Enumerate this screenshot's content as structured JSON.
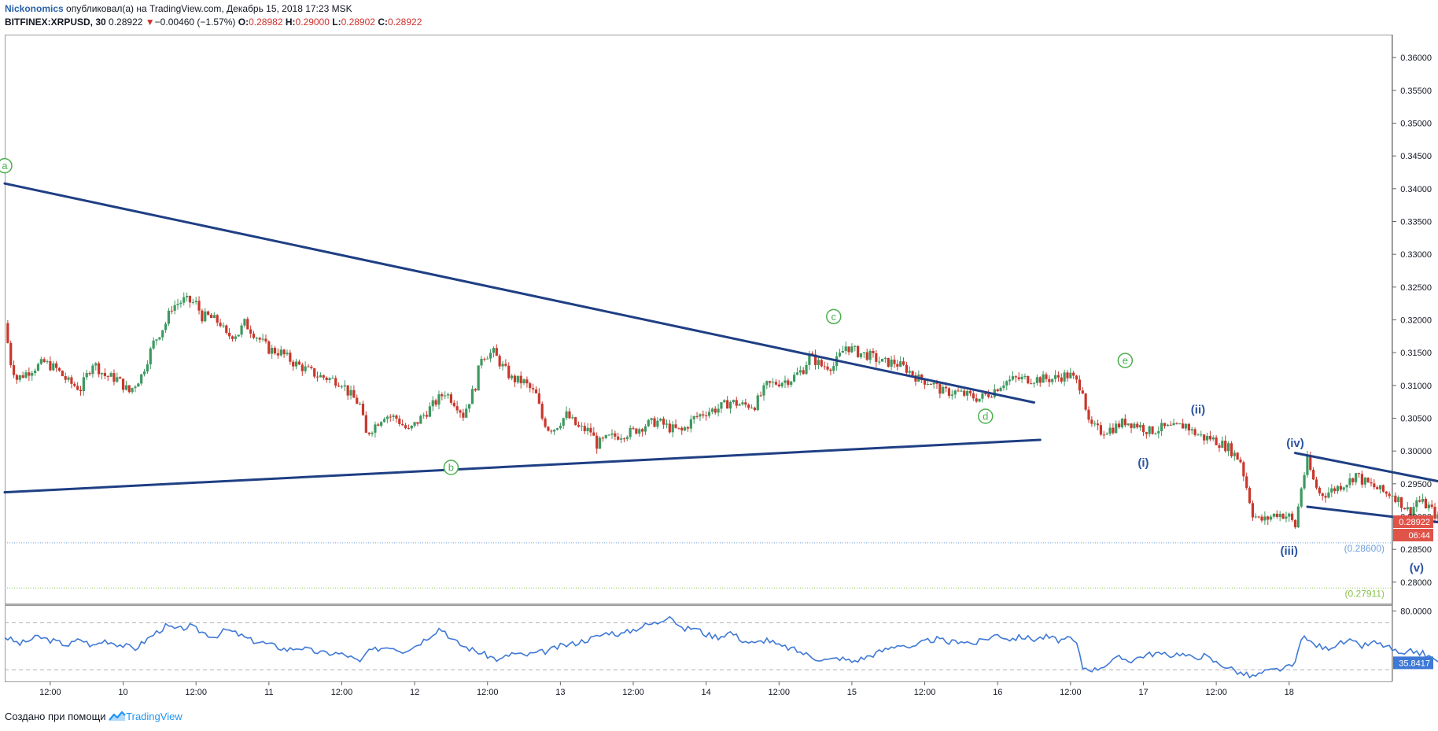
{
  "header": {
    "author": "Nickonomics",
    "published_text": "опубликовал(а) на TradingView.com, Декабрь 15, 2018 17:23 MSK",
    "symbol": "BITFINEX:XRPUSD, 30",
    "last": "0.28922",
    "change_arrow": "▼",
    "change": "−0.00460 (−1.57%)",
    "o_label": "O:",
    "o_value": "0.28982",
    "h_label": "H:",
    "h_value": "0.29000",
    "l_label": "L:",
    "l_value": "0.28902",
    "c_label": "C:",
    "c_value": "0.28922"
  },
  "footer": {
    "made_with": "Создано при помощи",
    "brand": "TradingView"
  },
  "colors": {
    "up": "#3d9960",
    "down": "#c9372c",
    "trendline": "#1f3f84",
    "wave_green": "#4caf50",
    "wave_blue": "#2a53a2",
    "rsi": "#3f79d6",
    "badge": "#e05349"
  },
  "chart_data": {
    "type": "candlestick",
    "symbol": "BITFINEX:XRPUSD",
    "interval": "30",
    "price_axis": {
      "ylim": [
        0.2765,
        0.3635
      ],
      "ticks": [
        "0.36000",
        "0.35500",
        "0.35000",
        "0.34500",
        "0.34000",
        "0.33500",
        "0.33000",
        "0.32500",
        "0.32000",
        "0.31500",
        "0.31000",
        "0.30500",
        "0.30000",
        "0.29500",
        "0.29000",
        "0.28500",
        "0.28000"
      ]
    },
    "time_axis": {
      "ticks": [
        "12:00",
        "10",
        "12:00",
        "11",
        "12:00",
        "12",
        "12:00",
        "13",
        "12:00",
        "14",
        "12:00",
        "15",
        "12:00",
        "16",
        "12:00",
        "17",
        "12:00",
        "18"
      ],
      "range_hours": [
        -7.5,
        221
      ]
    },
    "last_price_badge": "0.28922",
    "countdown_badge": "06:44",
    "levels": [
      {
        "label": "(0.28600)",
        "value": 0.286,
        "color": "#6d9fe0"
      },
      {
        "label": "(0.27911)",
        "value": 0.27911,
        "color": "#8bc34a"
      }
    ],
    "close_path": [
      [
        -7.5,
        0.3195
      ],
      [
        -6.5,
        0.3135
      ],
      [
        -5.5,
        0.311
      ],
      [
        -3,
        0.3125
      ],
      [
        -1,
        0.3135
      ],
      [
        1,
        0.3125
      ],
      [
        3,
        0.3105
      ],
      [
        5,
        0.3095
      ],
      [
        7,
        0.3135
      ],
      [
        9,
        0.3115
      ],
      [
        11,
        0.311
      ],
      [
        13,
        0.309
      ],
      [
        15,
        0.3115
      ],
      [
        17,
        0.3165
      ],
      [
        19,
        0.3195
      ],
      [
        20,
        0.322
      ],
      [
        22,
        0.323
      ],
      [
        24,
        0.3225
      ],
      [
        25,
        0.3205
      ],
      [
        26,
        0.3205
      ],
      [
        28,
        0.3195
      ],
      [
        29,
        0.3175
      ],
      [
        31,
        0.318
      ],
      [
        32,
        0.3195
      ],
      [
        34,
        0.3175
      ],
      [
        35,
        0.3165
      ],
      [
        36,
        0.3155
      ],
      [
        38,
        0.315
      ],
      [
        40,
        0.3135
      ],
      [
        42,
        0.3125
      ],
      [
        44,
        0.3115
      ],
      [
        46,
        0.311
      ],
      [
        48,
        0.3105
      ],
      [
        49,
        0.309
      ],
      [
        51,
        0.307
      ],
      [
        52,
        0.3025
      ],
      [
        54,
        0.3045
      ],
      [
        55,
        0.3055
      ],
      [
        57,
        0.305
      ],
      [
        59,
        0.303
      ],
      [
        61,
        0.305
      ],
      [
        63,
        0.307
      ],
      [
        65,
        0.309
      ],
      [
        67,
        0.307
      ],
      [
        68,
        0.3055
      ],
      [
        70,
        0.31
      ],
      [
        71,
        0.3145
      ],
      [
        73,
        0.315
      ],
      [
        74,
        0.3135
      ],
      [
        76,
        0.311
      ],
      [
        78,
        0.3105
      ],
      [
        80,
        0.3085
      ],
      [
        81,
        0.305
      ],
      [
        82,
        0.3035
      ],
      [
        83,
        0.3035
      ],
      [
        85,
        0.3055
      ],
      [
        87,
        0.3035
      ],
      [
        89,
        0.303
      ],
      [
        90,
        0.301
      ],
      [
        92,
        0.302
      ],
      [
        94,
        0.3025
      ],
      [
        96,
        0.303
      ],
      [
        98,
        0.304
      ],
      [
        100,
        0.3045
      ],
      [
        102,
        0.3035
      ],
      [
        104,
        0.303
      ],
      [
        106,
        0.305
      ],
      [
        108,
        0.306
      ],
      [
        110,
        0.3065
      ],
      [
        112,
        0.3075
      ],
      [
        114,
        0.307
      ],
      [
        116,
        0.307
      ],
      [
        118,
        0.31
      ],
      [
        120,
        0.3105
      ],
      [
        122,
        0.311
      ],
      [
        124,
        0.3125
      ],
      [
        125,
        0.3145
      ],
      [
        127,
        0.313
      ],
      [
        129,
        0.313
      ],
      [
        131,
        0.316
      ],
      [
        132,
        0.3155
      ],
      [
        133,
        0.315
      ],
      [
        135,
        0.3145
      ],
      [
        137,
        0.3135
      ],
      [
        139,
        0.3135
      ],
      [
        141,
        0.3125
      ],
      [
        143,
        0.311
      ],
      [
        145,
        0.3105
      ],
      [
        147,
        0.309
      ],
      [
        149,
        0.309
      ],
      [
        151,
        0.3085
      ],
      [
        153,
        0.308
      ],
      [
        155,
        0.309
      ],
      [
        157,
        0.3105
      ],
      [
        159,
        0.311
      ],
      [
        161,
        0.311
      ],
      [
        163,
        0.311
      ],
      [
        165,
        0.311
      ],
      [
        167,
        0.3115
      ],
      [
        168,
        0.3115
      ],
      [
        170,
        0.3095
      ],
      [
        171,
        0.304
      ],
      [
        173,
        0.303
      ],
      [
        175,
        0.3035
      ],
      [
        177,
        0.3045
      ],
      [
        179,
        0.304
      ],
      [
        181,
        0.303
      ],
      [
        183,
        0.3035
      ],
      [
        185,
        0.3035
      ],
      [
        187,
        0.304
      ],
      [
        188,
        0.303
      ],
      [
        189,
        0.3025
      ],
      [
        190,
        0.302
      ],
      [
        191,
        0.302
      ],
      [
        193,
        0.301
      ],
      [
        194,
        0.3005
      ],
      [
        195,
        0.2995
      ],
      [
        196,
        0.2985
      ],
      [
        197,
        0.2945
      ],
      [
        198,
        0.2905
      ],
      [
        199,
        0.2895
      ],
      [
        200,
        0.2895
      ],
      [
        202,
        0.2905
      ],
      [
        204,
        0.29
      ],
      [
        205,
        0.2885
      ],
      [
        206,
        0.2945
      ],
      [
        207,
        0.2985
      ],
      [
        208,
        0.2955
      ],
      [
        209,
        0.2935
      ],
      [
        210,
        0.2935
      ],
      [
        212,
        0.2945
      ],
      [
        214,
        0.2955
      ],
      [
        215,
        0.2965
      ],
      [
        216,
        0.2955
      ],
      [
        218,
        0.2945
      ],
      [
        220,
        0.2935
      ],
      [
        221,
        0.2935
      ],
      [
        223,
        0.2915
      ],
      [
        224,
        0.2905
      ],
      [
        225,
        0.2925
      ],
      [
        227,
        0.2915
      ],
      [
        228,
        0.2903
      ],
      [
        229,
        0.2892
      ]
    ],
    "trendlines": [
      {
        "name": "upper-triangle",
        "points": [
          [
            -7.5,
            0.3408
          ],
          [
            162,
            0.3074
          ]
        ]
      },
      {
        "name": "lower-triangle",
        "points": [
          [
            -7.5,
            0.2937
          ],
          [
            163,
            0.3017
          ]
        ]
      },
      {
        "name": "wedge-upper",
        "points": [
          [
            205,
            0.2997
          ],
          [
            241,
            0.2931
          ]
        ]
      },
      {
        "name": "wedge-lower",
        "points": [
          [
            207,
            0.2915
          ],
          [
            240,
            0.2879
          ]
        ]
      }
    ],
    "wave_labels": [
      {
        "text": "a",
        "t": -7.5,
        "price": 0.3435,
        "style": "circled-green"
      },
      {
        "text": "b",
        "t": 66,
        "price": 0.2975,
        "style": "circled-green"
      },
      {
        "text": "c",
        "t": 129,
        "price": 0.3205,
        "style": "circled-green"
      },
      {
        "text": "d",
        "t": 154,
        "price": 0.3053,
        "style": "circled-green"
      },
      {
        "text": "e",
        "t": 177,
        "price": 0.3138,
        "style": "circled-green"
      },
      {
        "text": "(i)",
        "t": 180,
        "price": 0.2982,
        "style": "blue"
      },
      {
        "text": "(ii)",
        "t": 189,
        "price": 0.3063,
        "style": "blue"
      },
      {
        "text": "(iii)",
        "t": 204,
        "price": 0.2848,
        "style": "blue"
      },
      {
        "text": "(iv)",
        "t": 205,
        "price": 0.3012,
        "style": "blue"
      },
      {
        "text": "(v)",
        "t": 225,
        "price": 0.2822,
        "style": "blue"
      }
    ],
    "rsi": {
      "ylim": [
        20,
        85
      ],
      "ticks": [
        "80.0000"
      ],
      "bands": [
        70,
        30
      ],
      "last_value_badge": "35.8417",
      "path": [
        [
          -7.5,
          58
        ],
        [
          -5,
          52
        ],
        [
          -2,
          58
        ],
        [
          0,
          55
        ],
        [
          3,
          51
        ],
        [
          5,
          56
        ],
        [
          7,
          50
        ],
        [
          9,
          55
        ],
        [
          11,
          52
        ],
        [
          14,
          48
        ],
        [
          17,
          60
        ],
        [
          19,
          67
        ],
        [
          21,
          64
        ],
        [
          23,
          67
        ],
        [
          25,
          62
        ],
        [
          27,
          58
        ],
        [
          29,
          64
        ],
        [
          31,
          60
        ],
        [
          33,
          55
        ],
        [
          35,
          53
        ],
        [
          37,
          50
        ],
        [
          39,
          47
        ],
        [
          41,
          49
        ],
        [
          43,
          46
        ],
        [
          45,
          44
        ],
        [
          47,
          44
        ],
        [
          49,
          42
        ],
        [
          51,
          36
        ],
        [
          52,
          44
        ],
        [
          54,
          48
        ],
        [
          56,
          50
        ],
        [
          58,
          46
        ],
        [
          60,
          50
        ],
        [
          62,
          57
        ],
        [
          64,
          65
        ],
        [
          65,
          63
        ],
        [
          66,
          56
        ],
        [
          68,
          50
        ],
        [
          70,
          46
        ],
        [
          72,
          42
        ],
        [
          74,
          38
        ],
        [
          76,
          44
        ],
        [
          78,
          42
        ],
        [
          80,
          44
        ],
        [
          82,
          46
        ],
        [
          84,
          50
        ],
        [
          86,
          52
        ],
        [
          88,
          55
        ],
        [
          90,
          58
        ],
        [
          92,
          62
        ],
        [
          94,
          60
        ],
        [
          96,
          64
        ],
        [
          98,
          68
        ],
        [
          100,
          70
        ],
        [
          102,
          77
        ],
        [
          104,
          64
        ],
        [
          106,
          66
        ],
        [
          108,
          60
        ],
        [
          110,
          58
        ],
        [
          112,
          62
        ],
        [
          114,
          55
        ],
        [
          116,
          52
        ],
        [
          118,
          56
        ],
        [
          120,
          50
        ],
        [
          122,
          48
        ],
        [
          124,
          44
        ],
        [
          126,
          40
        ],
        [
          128,
          38
        ],
        [
          130,
          40
        ],
        [
          132,
          37
        ],
        [
          134,
          40
        ],
        [
          136,
          44
        ],
        [
          138,
          48
        ],
        [
          140,
          52
        ],
        [
          142,
          48
        ],
        [
          144,
          54
        ],
        [
          146,
          56
        ],
        [
          148,
          53
        ],
        [
          150,
          55
        ],
        [
          152,
          52
        ],
        [
          154,
          56
        ],
        [
          156,
          60
        ],
        [
          158,
          56
        ],
        [
          160,
          58
        ],
        [
          162,
          56
        ],
        [
          164,
          58
        ],
        [
          166,
          55
        ],
        [
          168,
          56
        ],
        [
          169,
          52
        ],
        [
          170,
          32
        ],
        [
          172,
          30
        ],
        [
          174,
          35
        ],
        [
          176,
          40
        ],
        [
          178,
          38
        ],
        [
          180,
          42
        ],
        [
          182,
          44
        ],
        [
          184,
          42
        ],
        [
          186,
          44
        ],
        [
          188,
          40
        ],
        [
          190,
          42
        ],
        [
          192,
          36
        ],
        [
          194,
          32
        ],
        [
          196,
          27
        ],
        [
          198,
          24
        ],
        [
          200,
          28
        ],
        [
          202,
          30
        ],
        [
          204,
          32
        ],
        [
          205,
          35
        ],
        [
          206,
          58
        ],
        [
          208,
          52
        ],
        [
          210,
          48
        ],
        [
          212,
          52
        ],
        [
          214,
          54
        ],
        [
          216,
          50
        ],
        [
          218,
          53
        ],
        [
          220,
          50
        ],
        [
          222,
          44
        ],
        [
          223,
          41
        ],
        [
          224,
          46
        ],
        [
          226,
          44
        ],
        [
          228,
          38
        ],
        [
          229,
          35.84
        ]
      ]
    }
  }
}
